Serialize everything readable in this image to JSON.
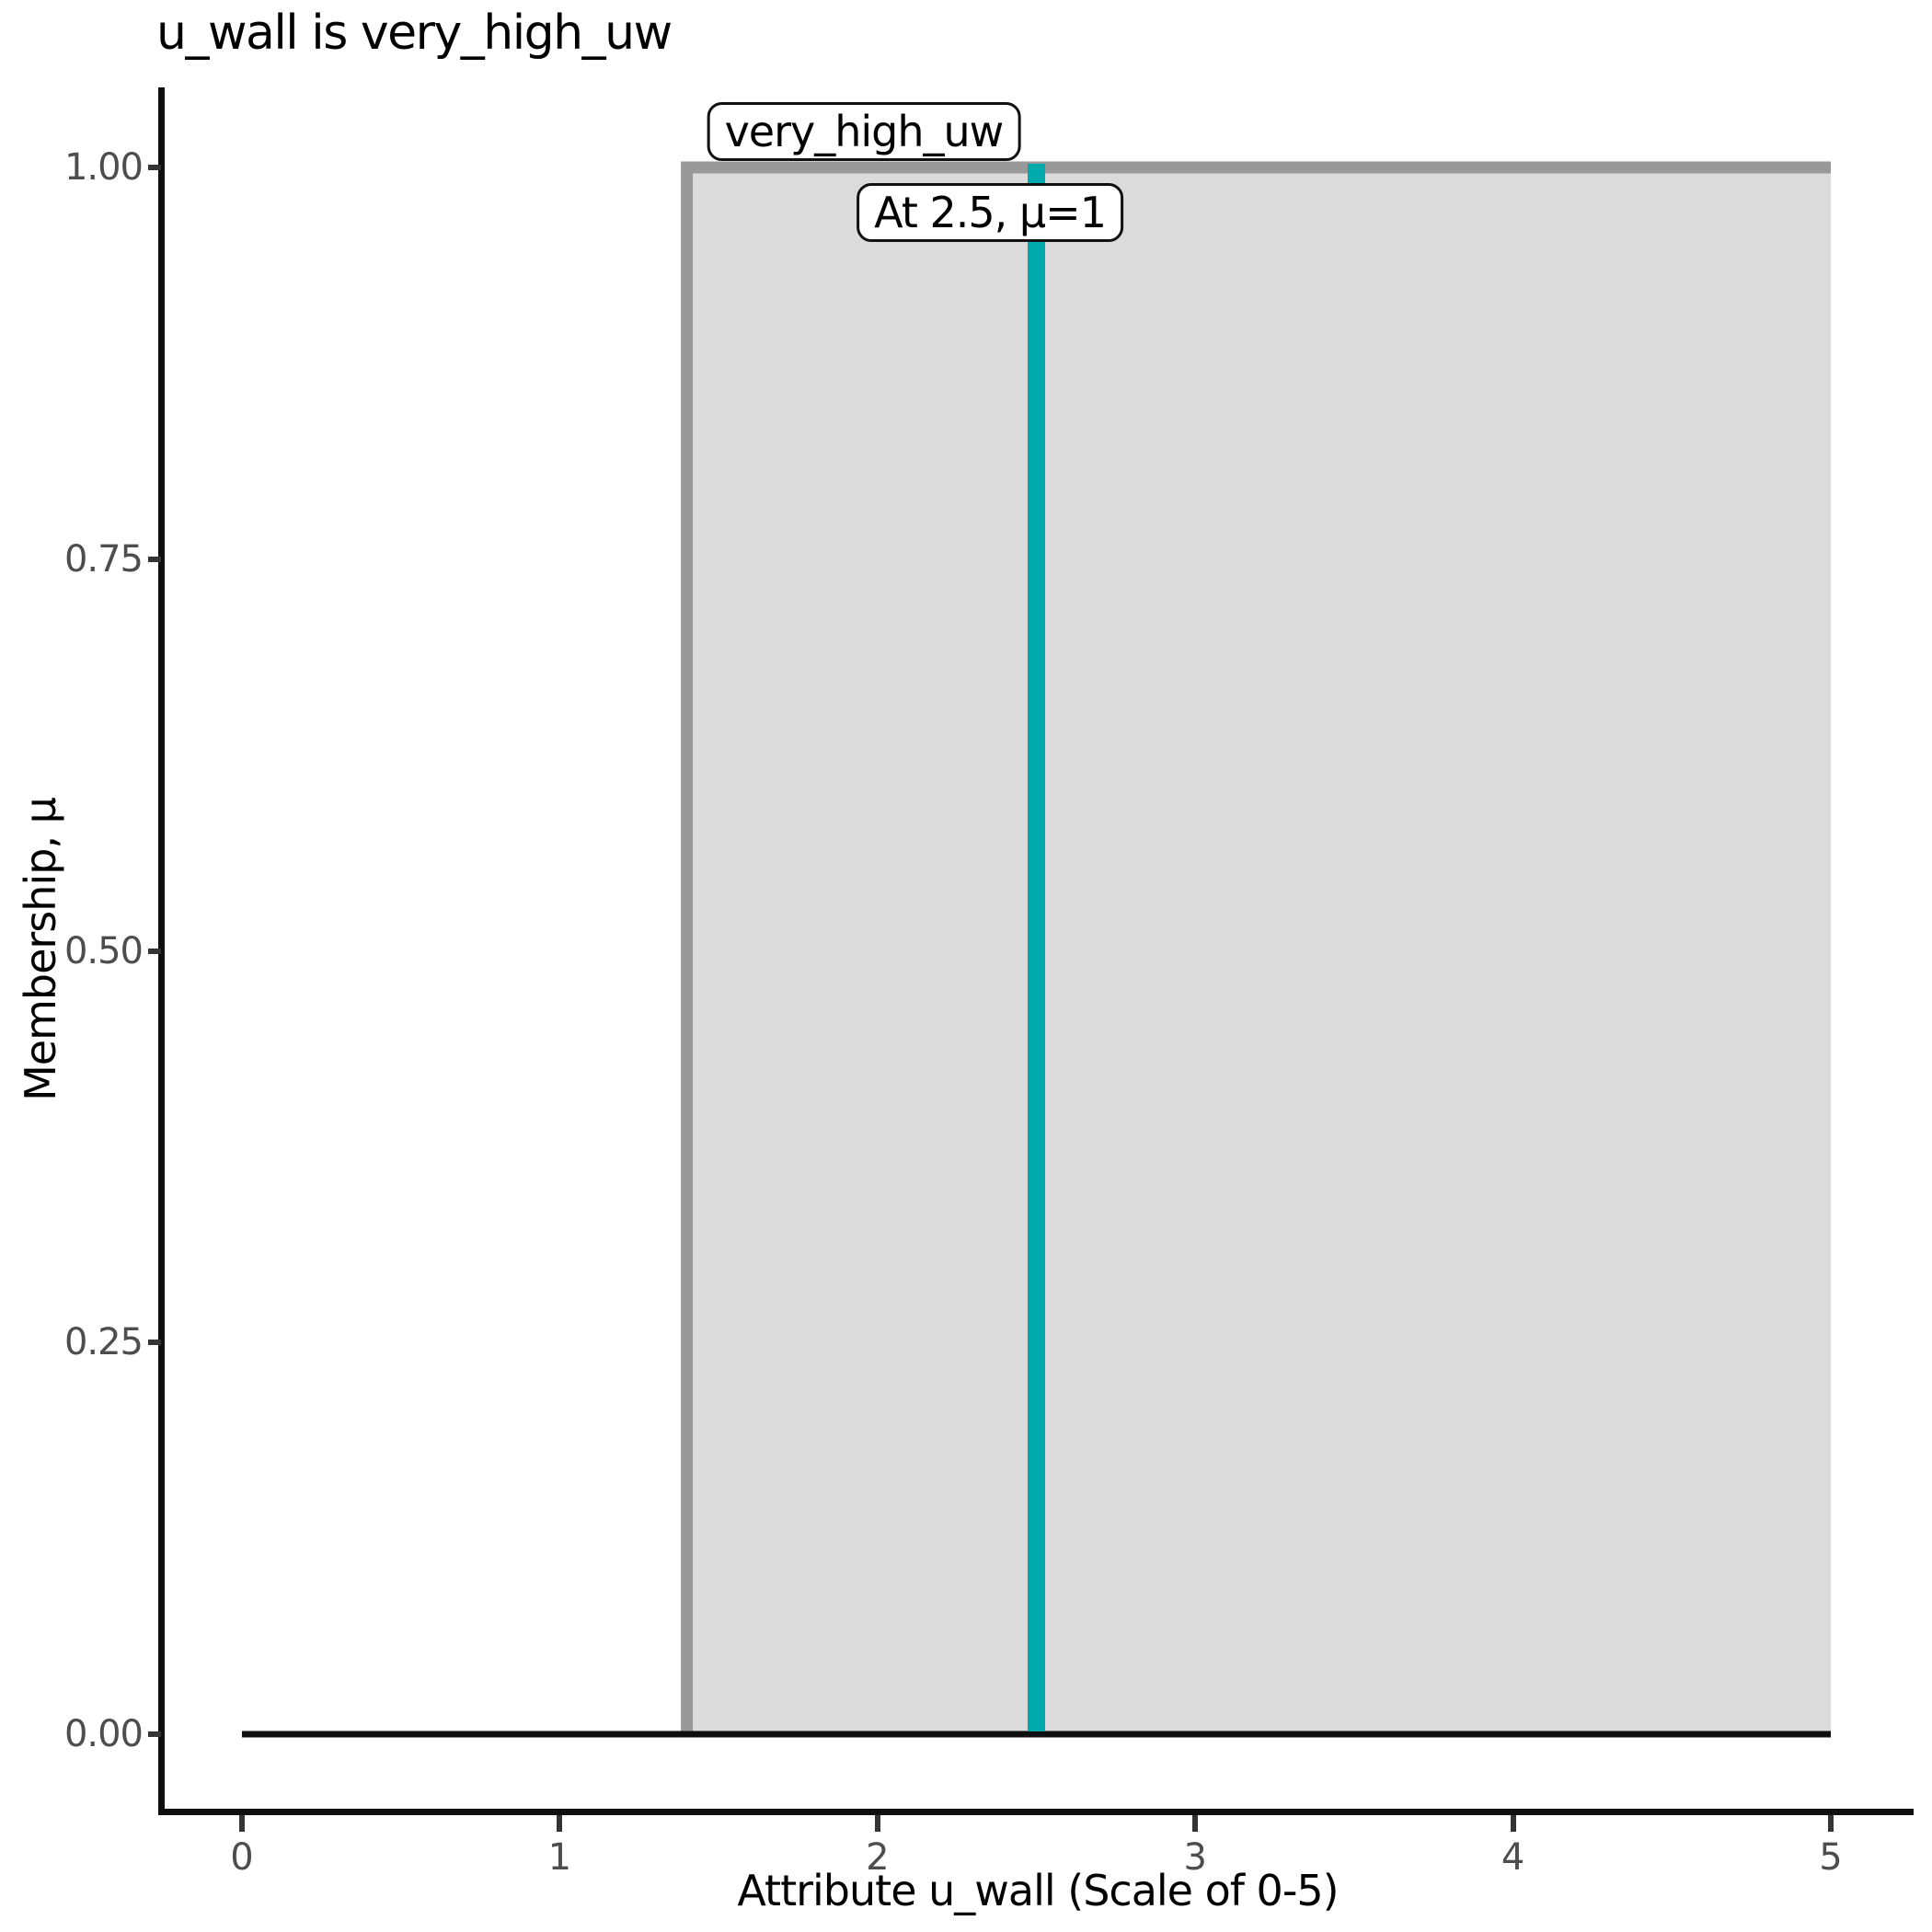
{
  "chart_data": {
    "type": "area",
    "title": "u_wall is very_high_uw",
    "xlabel": "Attribute u_wall (Scale of 0-5)",
    "ylabel": "Membership, μ",
    "xlim": [
      0,
      5
    ],
    "ylim": [
      0,
      1
    ],
    "grid": false,
    "legend": "none",
    "x_tick_values": [
      0,
      1,
      2,
      3,
      4,
      5
    ],
    "x_tick_labels": [
      "0",
      "1",
      "2",
      "3",
      "4",
      "5"
    ],
    "y_tick_values": [
      0,
      0.25,
      0.5,
      0.75,
      1
    ],
    "y_tick_labels": [
      "0.00",
      "0.25",
      "0.50",
      "0.75",
      "1.00"
    ],
    "membership_function": {
      "name": "very_high_uw",
      "points": [
        [
          1.4,
          0
        ],
        [
          1.4,
          1
        ],
        [
          5,
          1
        ]
      ],
      "fill_baseline": 0
    },
    "baseline": {
      "name": "zero-membership",
      "points": [
        [
          0,
          0
        ],
        [
          5,
          0
        ]
      ]
    },
    "input_line": {
      "x": 2.5,
      "mu": 1
    },
    "annotations": [
      {
        "text": "very_high_uw",
        "x": 1.957,
        "y": 1.023
      },
      {
        "text": "At 2.5, μ=1",
        "x": 2.354,
        "y": 0.971
      }
    ],
    "colors": {
      "mf_line": "#999999",
      "mf_fill": "#dbdbdb",
      "baseline": "#0f0f0f",
      "input_line": "#00aaac"
    }
  }
}
